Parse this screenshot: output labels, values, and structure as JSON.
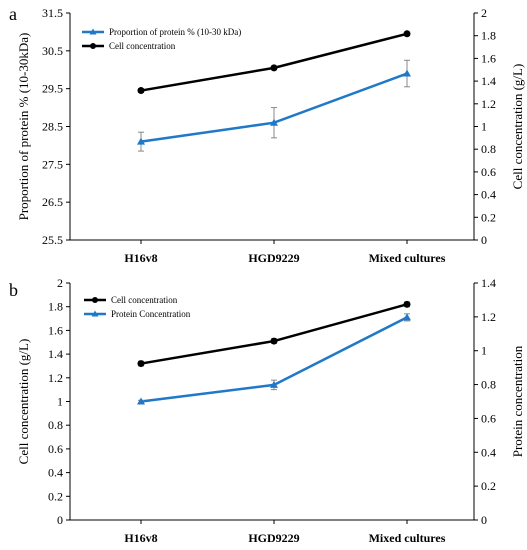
{
  "chart_data": [
    {
      "panel_label": "a",
      "type": "line",
      "categories": [
        "H16v8",
        "HGD9229",
        "Mixed cultures"
      ],
      "left_axis": {
        "label": "Proportion of protein % (10-30kDa)",
        "ylim": [
          25.5,
          31.5
        ],
        "ticks": [
          "25.5",
          "26.5",
          "27.5",
          "28.5",
          "29.5",
          "30.5",
          "31.5"
        ]
      },
      "right_axis": {
        "label": "Cell concentration (g/L)",
        "ylim": [
          0,
          2
        ],
        "ticks": [
          "0",
          "0.2",
          "0.4",
          "0.6",
          "0.8",
          "1",
          "1.2",
          "1.4",
          "1.6",
          "1.8",
          "2"
        ]
      },
      "series": [
        {
          "name": "Proportion of protein % (10-30 kDa)",
          "axis": "left",
          "color": "#1f78c8",
          "marker": "triangle",
          "values": [
            28.1,
            28.6,
            29.9
          ],
          "errors": [
            0.25,
            0.4,
            0.35
          ]
        },
        {
          "name": "Cell concentration",
          "axis": "left",
          "color": "#000000",
          "marker": "circle",
          "values": [
            29.45,
            30.05,
            30.95
          ],
          "errors": [
            0.05,
            0.05,
            0.05
          ]
        }
      ],
      "legend_position": "top-left"
    },
    {
      "panel_label": "b",
      "type": "line",
      "categories": [
        "H16v8",
        "HGD9229",
        "Mixed cultures"
      ],
      "left_axis": {
        "label": "Cell concentration (g/L)",
        "ylim": [
          0,
          2
        ],
        "ticks": [
          "0",
          "0.2",
          "0.4",
          "0.6",
          "0.8",
          "1",
          "1.2",
          "1.4",
          "1.6",
          "1.8",
          "2"
        ]
      },
      "right_axis": {
        "label": "Protein concentration",
        "ylim": [
          0,
          1.4
        ],
        "ticks": [
          "0",
          "0.2",
          "0.4",
          "0.6",
          "0.8",
          "1",
          "1.2",
          "1.4"
        ]
      },
      "series": [
        {
          "name": "Cell concentration",
          "axis": "left",
          "color": "#000000",
          "marker": "circle",
          "values": [
            1.32,
            1.51,
            1.82
          ],
          "errors": [
            0.02,
            0.02,
            0.02
          ]
        },
        {
          "name": "Protein Concentration",
          "axis": "left",
          "color": "#1f78c8",
          "marker": "triangle",
          "values": [
            1.0,
            1.14,
            1.71
          ],
          "errors": [
            0.01,
            0.04,
            0.03
          ]
        }
      ],
      "legend_position": "top-left"
    }
  ]
}
